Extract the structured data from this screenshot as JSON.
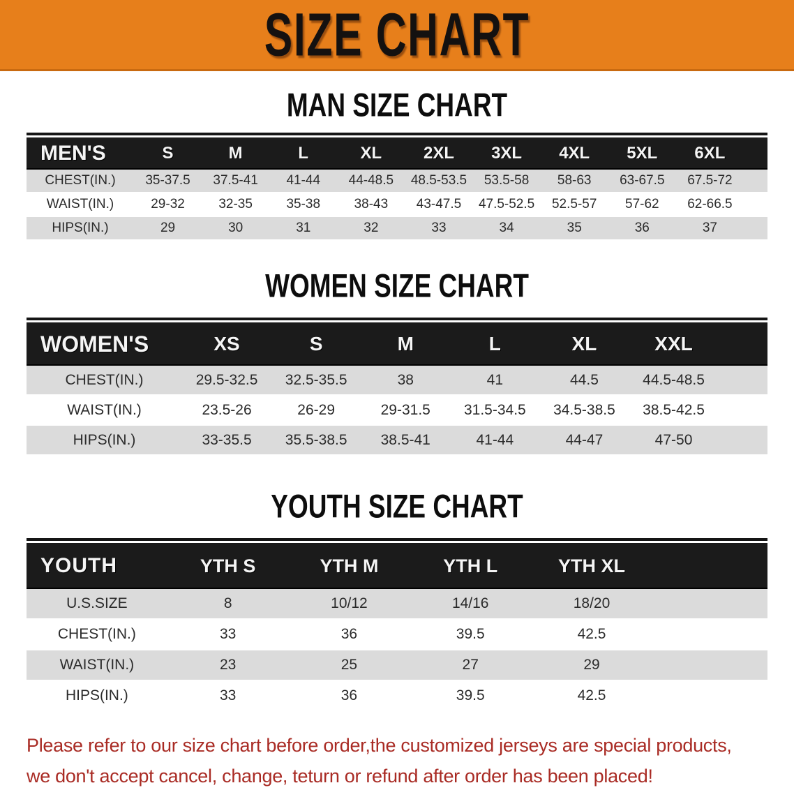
{
  "banner": {
    "title": "SIZE CHART",
    "bg_color": "#E77F1B",
    "text_color": "#141110"
  },
  "sections": [
    {
      "heading": "MAN SIZE CHART",
      "table": {
        "label": "MEN'S",
        "columns": [
          "S",
          "M",
          "L",
          "XL",
          "2XL",
          "3XL",
          "4XL",
          "5XL",
          "6XL"
        ],
        "rows": [
          {
            "label": "CHEST(IN.)",
            "values": [
              "35-37.5",
              "37.5-41",
              "41-44",
              "44-48.5",
              "48.5-53.5",
              "53.5-58",
              "58-63",
              "63-67.5",
              "67.5-72"
            ]
          },
          {
            "label": "WAIST(IN.)",
            "values": [
              "29-32",
              "32-35",
              "35-38",
              "38-43",
              "43-47.5",
              "47.5-52.5",
              "52.5-57",
              "57-62",
              "62-66.5"
            ]
          },
          {
            "label": "HIPS(IN.)",
            "values": [
              "29",
              "30",
              "31",
              "32",
              "33",
              "34",
              "35",
              "36",
              "37"
            ]
          }
        ]
      }
    },
    {
      "heading": "WOMEN SIZE CHART",
      "table": {
        "label": "WOMEN'S",
        "columns": [
          "XS",
          "S",
          "M",
          "L",
          "XL",
          "XXL"
        ],
        "rows": [
          {
            "label": "CHEST(IN.)",
            "values": [
              "29.5-32.5",
              "32.5-35.5",
              "38",
              "41",
              "44.5",
              "44.5-48.5"
            ]
          },
          {
            "label": "WAIST(IN.)",
            "values": [
              "23.5-26",
              "26-29",
              "29-31.5",
              "31.5-34.5",
              "34.5-38.5",
              "38.5-42.5"
            ]
          },
          {
            "label": "HIPS(IN.)",
            "values": [
              "33-35.5",
              "35.5-38.5",
              "38.5-41",
              "41-44",
              "44-47",
              "47-50"
            ]
          }
        ]
      }
    },
    {
      "heading": "YOUTH SIZE CHART",
      "table": {
        "label": "YOUTH",
        "columns": [
          "YTH S",
          "YTH M",
          "YTH L",
          "YTH XL"
        ],
        "rows": [
          {
            "label": "U.S.SIZE",
            "values": [
              "8",
              "10/12",
              "14/16",
              "18/20"
            ]
          },
          {
            "label": "CHEST(IN.)",
            "values": [
              "33",
              "36",
              "39.5",
              "42.5"
            ]
          },
          {
            "label": "WAIST(IN.)",
            "values": [
              "23",
              "25",
              "27",
              "29"
            ]
          },
          {
            "label": "HIPS(IN.)",
            "values": [
              "33",
              "36",
              "39.5",
              "42.5"
            ]
          }
        ]
      }
    }
  ],
  "disclaimer": {
    "line1": "Please refer to our size chart before order,the customized jerseys are special products,",
    "line2": "we don't accept cancel, change, teturn or refund after order has been placed!",
    "color": "#A92B24"
  },
  "colors": {
    "banner_bg": "#E77F1B",
    "table_header_bg": "#1b1b1b",
    "row_stripe": "#DBDBDB"
  }
}
